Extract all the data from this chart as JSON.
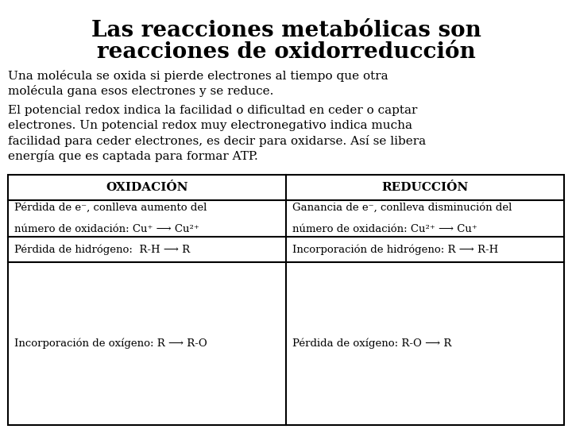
{
  "title_line1": "Las reacciones metabólicas son",
  "title_line2": "reacciones de oxidorreducción",
  "para1_line1": "Una molécula se oxida si pierde electrones al tiempo que otra",
  "para1_line2": "molécula gana esos electrones y se reduce.",
  "para2_line1": "El potencial redox indica la facilidad o dificultad en ceder o captar",
  "para2_line2": "electrones. Un potencial redox muy electronegativo indica mucha",
  "para2_line3": "facilidad para ceder electrones, es decir para oxidarse. Así se libera",
  "para2_line4": "energía que es captada para formar ATP.",
  "col1_header": "OXIDACIÓN",
  "col2_header": "REDUCCIÓN",
  "row1_col1_l1": "Pérdida de e⁻, conlleva aumento del",
  "row1_col1_l2": "número de oxidación: Cu⁺ ⟶ Cu²⁺",
  "row1_col2_l1": "Ganancia de e⁻, conlleva disminución del",
  "row1_col2_l2": "número de oxidación: Cu²⁺ ⟶ Cu⁺",
  "row2_col1": "Pérdida de hidrógeno:  R-H ⟶ R",
  "row2_col2": "Incorporación de hidrógeno: R ⟶ R-H",
  "row3_col1": "Incorporación de oxígeno: R ⟶ R-O",
  "row3_col2": "Pérdida de oxígeno: R-O ⟶ R",
  "bg_color": "#ffffff",
  "text_color": "#000000",
  "title_fontsize": 20,
  "body_fontsize": 11,
  "table_header_fontsize": 11,
  "table_body_fontsize": 9.5
}
